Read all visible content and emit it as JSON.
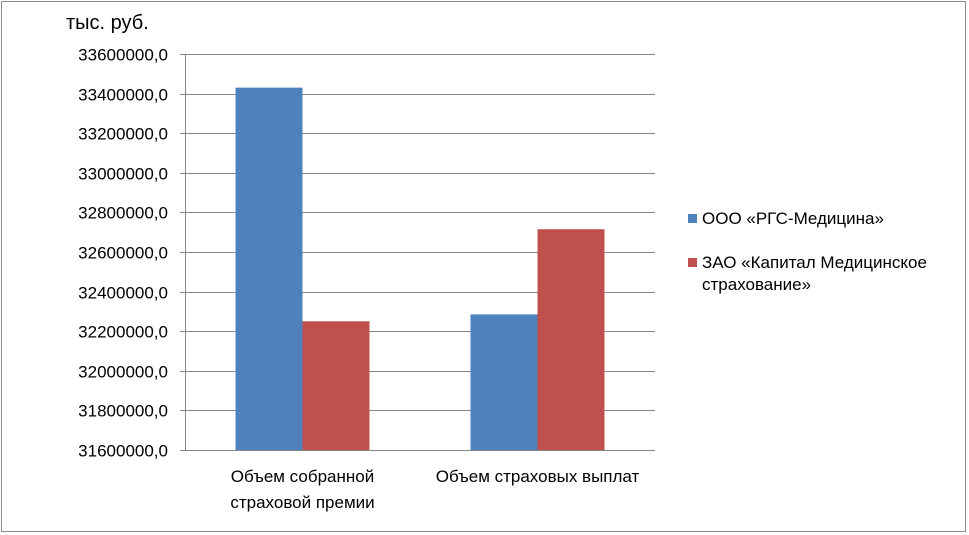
{
  "chart_data": {
    "type": "bar",
    "unit_label": "тыс. руб.",
    "categories": [
      "Объем собранной страховой премии",
      "Объем страховых выплат"
    ],
    "category_lines": [
      [
        "Объем собранной",
        "страховой премии"
      ],
      [
        "Объем страховых выплат"
      ]
    ],
    "series": [
      {
        "name": "ООО «РГС-Медицина»",
        "color": "#4F81BD",
        "values": [
          33430000,
          32285000
        ]
      },
      {
        "name": "ЗАО «Капитал Медицинское страхование»",
        "color": "#C0504D",
        "values": [
          32250000,
          32715000
        ]
      }
    ],
    "ylim": [
      31600000,
      33600000
    ],
    "ytick_step": 200000,
    "ytick_labels": [
      "31600000,0",
      "31800000,0",
      "32000000,0",
      "32200000,0",
      "32400000,0",
      "32600000,0",
      "32800000,0",
      "33000000,0",
      "33200000,0",
      "33400000,0",
      "33600000,0"
    ],
    "grid": true,
    "legend_position": "right"
  },
  "legend": {
    "item1_label": "ООО «РГС-Медицина»",
    "item2_line1": "ЗАО «Капитал Медицинское",
    "item2_line2": "страхование»"
  }
}
